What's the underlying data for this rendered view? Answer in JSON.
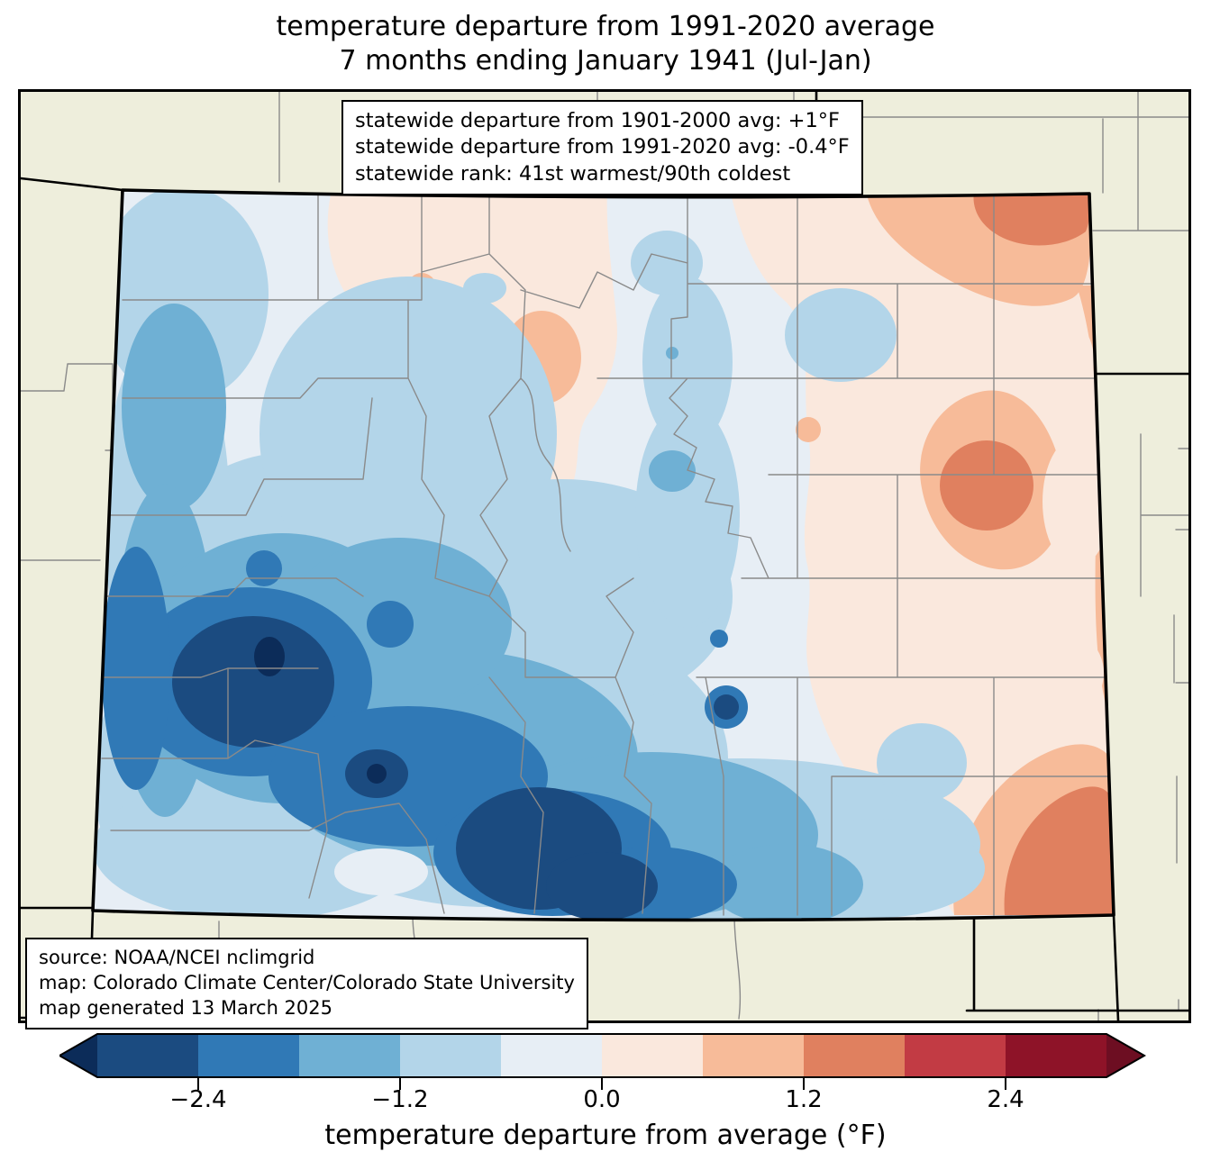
{
  "title": {
    "line1": "temperature departure from 1991-2020 average",
    "line2": "7 months ending January 1941 (Jul-Jan)"
  },
  "stats_box": {
    "lines": [
      "statewide departure from 1901-2000 avg: +1°F",
      "statewide departure from 1991-2020 avg: -0.4°F",
      "statewide rank: 41st warmest/90th coldest"
    ]
  },
  "source_box": {
    "lines": [
      "source: NOAA/NCEI nclimgrid",
      "map: Colorado Climate Center/Colorado State University",
      "map generated 13 March 2025"
    ]
  },
  "colorbar": {
    "label": "temperature departure from average (°F)",
    "ticks": [
      {
        "label": "−2.4",
        "value": -2.4,
        "boundary_index": 1
      },
      {
        "label": "−1.2",
        "value": -1.2,
        "boundary_index": 3
      },
      {
        "label": "0.0",
        "value": 0.0,
        "boundary_index": 5
      },
      {
        "label": "1.2",
        "value": 1.2,
        "boundary_index": 7
      },
      {
        "label": "2.4",
        "value": 2.4,
        "boundary_index": 9
      }
    ],
    "levels_f": [
      -3.0,
      -2.4,
      -1.8,
      -1.2,
      -0.6,
      0.0,
      0.6,
      1.2,
      1.8,
      2.4,
      3.0
    ],
    "segment_colors": [
      "#1b4b80",
      "#3079b6",
      "#6fb0d4",
      "#b3d5e9",
      "#e7eef5",
      "#fae8dd",
      "#f7bb99",
      "#e0805f",
      "#c23b44",
      "#8e1328"
    ],
    "under_color": "#0c2c59",
    "over_color": "#6d0e22"
  },
  "map": {
    "region": "Colorado with county boundaries and neighboring states",
    "outside_fill": "#eeeedc",
    "county_line_color": "#8a8a8a",
    "state_line_color": "#000000"
  },
  "chart_data": {
    "type": "heatmap",
    "subtype": "filled-contour choropleth map of Colorado",
    "title": "temperature departure from 1991-2020 average, 7 months ending January 1941 (Jul-Jan)",
    "variable": "temperature departure from average (°F)",
    "color_levels_f": [
      -3.0,
      -2.4,
      -1.8,
      -1.2,
      -0.6,
      0.0,
      0.6,
      1.2,
      1.8,
      2.4,
      3.0
    ],
    "colorbar_tick_values": [
      -2.4,
      -1.2,
      0.0,
      1.2,
      2.4
    ],
    "statewide_departure_from_1901_2000_avg_f": 1.0,
    "statewide_departure_from_1991_2020_avg_f": -0.4,
    "statewide_rank": "41st warmest/90th coldest",
    "spatial_pattern": [
      {
        "area": "southwest / San Juan mountains core",
        "departure_f": "below -3.0 (coldest spots)"
      },
      {
        "area": "south-central mountains and upper Rio Grande",
        "departure_f": "-3.0 to -2.4"
      },
      {
        "area": "west-central band from northwest corner through southwest",
        "departure_f": "-2.4 to -1.2"
      },
      {
        "area": "central mountains, Front Range corridor",
        "departure_f": "-1.2 to 0.0"
      },
      {
        "area": "north-central valleys",
        "departure_f": "0.0 to +0.6"
      },
      {
        "area": "eastern plains",
        "departure_f": "+0.6 to +1.2"
      },
      {
        "area": "northeast corner, east-central and southeast near Kansas border",
        "departure_f": "+1.2 to +1.8 (warmest)"
      }
    ]
  }
}
